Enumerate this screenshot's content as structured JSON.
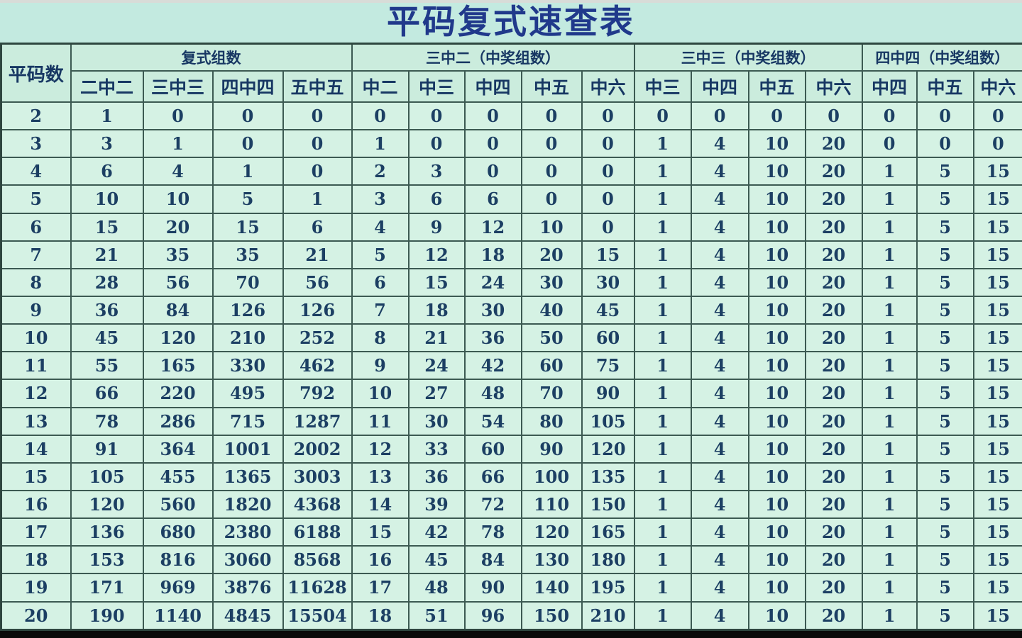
{
  "title": "平码复式速查表",
  "colors": {
    "page_background": "#c3eae0",
    "cell_background": "#d5f2e4",
    "header_background": "#cbecdd",
    "title_text": "#20398b",
    "header_text": "#173763",
    "number_text": "#1c3f63",
    "grid_border": "#3c5a52",
    "bottom_bar": "#0a0a0a"
  },
  "chart_data": {
    "type": "table",
    "title": "平码复式速查表",
    "corner_header": "平码数",
    "groups": [
      {
        "label": "复式组数",
        "columns": [
          "二中二",
          "三中三",
          "四中四",
          "五中五"
        ]
      },
      {
        "label": "三中二（中奖组数）",
        "columns": [
          "中二",
          "中三",
          "中四",
          "中五",
          "中六"
        ]
      },
      {
        "label": "三中三（中奖组数）",
        "columns": [
          "中三",
          "中四",
          "中五",
          "中六"
        ]
      },
      {
        "label": "四中四（中奖组数）",
        "columns": [
          "中四",
          "中五",
          "中六"
        ]
      }
    ],
    "rows": [
      [
        2,
        1,
        0,
        0,
        0,
        0,
        0,
        0,
        0,
        0,
        0,
        0,
        0,
        0,
        0,
        0,
        0
      ],
      [
        3,
        3,
        1,
        0,
        0,
        1,
        0,
        0,
        0,
        0,
        1,
        4,
        10,
        20,
        0,
        0,
        0
      ],
      [
        4,
        6,
        4,
        1,
        0,
        2,
        3,
        0,
        0,
        0,
        1,
        4,
        10,
        20,
        1,
        5,
        15
      ],
      [
        5,
        10,
        10,
        5,
        1,
        3,
        6,
        6,
        0,
        0,
        1,
        4,
        10,
        20,
        1,
        5,
        15
      ],
      [
        6,
        15,
        20,
        15,
        6,
        4,
        9,
        12,
        10,
        0,
        1,
        4,
        10,
        20,
        1,
        5,
        15
      ],
      [
        7,
        21,
        35,
        35,
        21,
        5,
        12,
        18,
        20,
        15,
        1,
        4,
        10,
        20,
        1,
        5,
        15
      ],
      [
        8,
        28,
        56,
        70,
        56,
        6,
        15,
        24,
        30,
        30,
        1,
        4,
        10,
        20,
        1,
        5,
        15
      ],
      [
        9,
        36,
        84,
        126,
        126,
        7,
        18,
        30,
        40,
        45,
        1,
        4,
        10,
        20,
        1,
        5,
        15
      ],
      [
        10,
        45,
        120,
        210,
        252,
        8,
        21,
        36,
        50,
        60,
        1,
        4,
        10,
        20,
        1,
        5,
        15
      ],
      [
        11,
        55,
        165,
        330,
        462,
        9,
        24,
        42,
        60,
        75,
        1,
        4,
        10,
        20,
        1,
        5,
        15
      ],
      [
        12,
        66,
        220,
        495,
        792,
        10,
        27,
        48,
        70,
        90,
        1,
        4,
        10,
        20,
        1,
        5,
        15
      ],
      [
        13,
        78,
        286,
        715,
        1287,
        11,
        30,
        54,
        80,
        105,
        1,
        4,
        10,
        20,
        1,
        5,
        15
      ],
      [
        14,
        91,
        364,
        1001,
        2002,
        12,
        33,
        60,
        90,
        120,
        1,
        4,
        10,
        20,
        1,
        5,
        15
      ],
      [
        15,
        105,
        455,
        1365,
        3003,
        13,
        36,
        66,
        100,
        135,
        1,
        4,
        10,
        20,
        1,
        5,
        15
      ],
      [
        16,
        120,
        560,
        1820,
        4368,
        14,
        39,
        72,
        110,
        150,
        1,
        4,
        10,
        20,
        1,
        5,
        15
      ],
      [
        17,
        136,
        680,
        2380,
        6188,
        15,
        42,
        78,
        120,
        165,
        1,
        4,
        10,
        20,
        1,
        5,
        15
      ],
      [
        18,
        153,
        816,
        3060,
        8568,
        16,
        45,
        84,
        130,
        180,
        1,
        4,
        10,
        20,
        1,
        5,
        15
      ],
      [
        19,
        171,
        969,
        3876,
        11628,
        17,
        48,
        90,
        140,
        195,
        1,
        4,
        10,
        20,
        1,
        5,
        15
      ],
      [
        20,
        190,
        1140,
        4845,
        15504,
        18,
        51,
        96,
        150,
        210,
        1,
        4,
        10,
        20,
        1,
        5,
        15
      ]
    ]
  }
}
